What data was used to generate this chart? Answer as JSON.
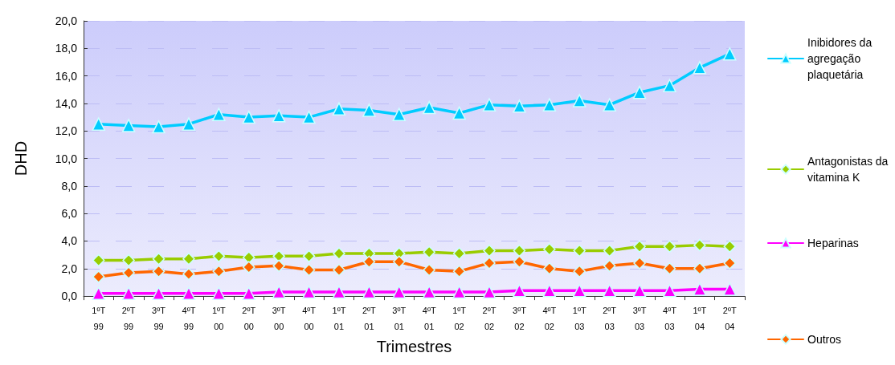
{
  "chart_data": {
    "type": "line",
    "xlabel": "Trimestres",
    "ylabel": "DHD",
    "categories": [
      "1ºT\n99",
      "2ºT\n99",
      "3ºT\n99",
      "4ºT\n99",
      "1ºT\n00",
      "2ºT\n00",
      "3ºT\n00",
      "4ºT\n00",
      "1ºT\n01",
      "2ºT\n01",
      "3ºT\n01",
      "4ºT\n01",
      "1ºT\n02",
      "2ºT\n02",
      "3ºT\n02",
      "4ºT\n02",
      "1ºT\n03",
      "2ºT\n03",
      "3ºT\n03",
      "4ºT\n03",
      "1ºT\n04",
      "2ºT\n04"
    ],
    "series": [
      {
        "name": "Inibidores da agregação plaquetária",
        "color": "#00ccff",
        "marker": "triangle",
        "values": [
          12.5,
          12.4,
          12.3,
          12.5,
          13.2,
          13.0,
          13.1,
          13.0,
          13.6,
          13.5,
          13.2,
          13.7,
          13.3,
          13.9,
          13.8,
          13.9,
          14.2,
          13.9,
          14.8,
          15.3,
          16.6,
          17.6
        ]
      },
      {
        "name": "Antagonistas da vitamina K",
        "color": "#99cc00",
        "marker": "diamond",
        "values": [
          2.6,
          2.6,
          2.7,
          2.7,
          2.9,
          2.8,
          2.9,
          2.9,
          3.1,
          3.1,
          3.1,
          3.2,
          3.1,
          3.3,
          3.3,
          3.4,
          3.3,
          3.3,
          3.6,
          3.6,
          3.7,
          3.6
        ]
      },
      {
        "name": "Heparinas",
        "color": "#ff00ff",
        "marker": "triangle",
        "values": [
          0.2,
          0.2,
          0.2,
          0.2,
          0.2,
          0.2,
          0.3,
          0.3,
          0.3,
          0.3,
          0.3,
          0.3,
          0.3,
          0.3,
          0.4,
          0.4,
          0.4,
          0.4,
          0.4,
          0.4,
          0.5,
          0.5
        ]
      },
      {
        "name": "Outros",
        "color": "#ff6600",
        "marker": "diamond",
        "values": [
          1.4,
          1.7,
          1.8,
          1.6,
          1.8,
          2.1,
          2.2,
          1.9,
          1.9,
          2.5,
          2.5,
          1.9,
          1.8,
          2.4,
          2.5,
          2.0,
          1.8,
          2.2,
          2.4,
          2.0,
          2.0,
          2.4
        ]
      }
    ],
    "ylim": [
      0,
      20
    ],
    "yticks": [
      {
        "value": 0,
        "label": "0,0"
      },
      {
        "value": 2,
        "label": "2,0"
      },
      {
        "value": 4,
        "label": "4,0"
      },
      {
        "value": 6,
        "label": "6,0"
      },
      {
        "value": 8,
        "label": "8,0"
      },
      {
        "value": 10,
        "label": "10,0"
      },
      {
        "value": 12,
        "label": "12,0"
      },
      {
        "value": 14,
        "label": "14,0"
      },
      {
        "value": 16,
        "label": "16,0"
      },
      {
        "value": 18,
        "label": "18,0"
      },
      {
        "value": 20,
        "label": "20,0"
      }
    ],
    "grid": "y",
    "legend": "right"
  }
}
